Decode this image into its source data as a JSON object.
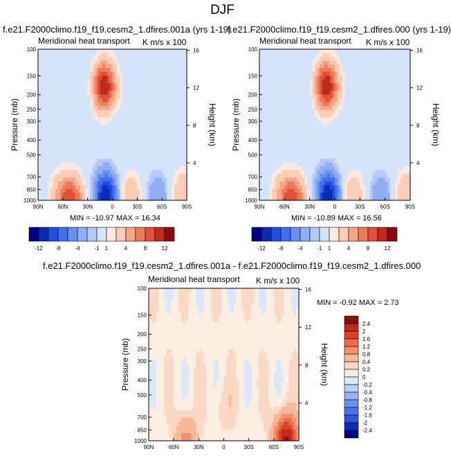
{
  "page_title": "DJF",
  "panels": [
    {
      "case": "f.e21.F2000climo.f19_f19.cesm2_1.dfires.001a (yrs 1-19)",
      "left_title": "Meridional heat transport",
      "right_title": "K m/s x 100",
      "stats": "MIN = -10.97   MAX =  16.34"
    },
    {
      "case": "f.e21.F2000climo.f19_f19.cesm2_1.dfires.000 (yrs 1-19)",
      "left_title": "Meridional heat transport",
      "right_title": "K m/s x 100",
      "stats": "MIN = -10.89   MAX =  16.56"
    },
    {
      "case": "f.e21.F2000climo.f19_f19.cesm2_1.dfires.001a - f.e21.F2000climo.f19_f19.cesm2_1.dfires.000",
      "left_title": "Meridional heat transport",
      "right_title": "K m/s x 100",
      "stats": "MIN =  -0.92   MAX =   2.73"
    }
  ],
  "chart_data": [
    {
      "type": "heatmap",
      "xlabel": "",
      "ylabel": "Pressure (mb)",
      "ylabel_right": "Height (km)",
      "x_ticks": [
        "90N",
        "60N",
        "30N",
        "0",
        "30S",
        "60S",
        "90S"
      ],
      "y_ticks": [
        "100",
        "150",
        "200",
        "250",
        "300",
        "400",
        "500",
        "700",
        "850",
        "1000"
      ],
      "y_right_ticks": [
        "16",
        "12",
        "8",
        "4"
      ],
      "colorbar_labels": [
        "-12",
        "-8",
        "-4",
        "-1",
        "1",
        "4",
        "8",
        "12"
      ],
      "colors": [
        "#000080",
        "#0a2bb5",
        "#1f4fe0",
        "#3f6ff0",
        "#6890f3",
        "#90aef5",
        "#b4c9f8",
        "#d6e4fb",
        "#fdeade",
        "#fbcdb4",
        "#f6a685",
        "#ee7b58",
        "#e0503a",
        "#c02a1c",
        "#8b0a0a"
      ],
      "features": [
        {
          "lat": 62,
          "p": 940,
          "value": 4
        },
        {
          "lat": 48,
          "p": 1000,
          "value": 8
        },
        {
          "lat": 8,
          "p": 930,
          "value": -12
        },
        {
          "lat": -22,
          "p": 950,
          "value": 4
        },
        {
          "lat": -55,
          "p": 960,
          "value": -4
        },
        {
          "lat": -85,
          "p": 920,
          "value": 4
        },
        {
          "lat": 10,
          "p": 175,
          "value": 12
        },
        {
          "lat": 30,
          "p": 175,
          "value": -1
        },
        {
          "lat": -30,
          "p": 200,
          "value": 1
        }
      ]
    },
    {
      "type": "heatmap",
      "xlabel": "",
      "ylabel": "Pressure (mb)",
      "ylabel_right": "Height (km)",
      "x_ticks": [
        "90N",
        "60N",
        "30N",
        "0",
        "30S",
        "60S",
        "90S"
      ],
      "y_ticks": [
        "100",
        "150",
        "200",
        "250",
        "300",
        "400",
        "500",
        "700",
        "850",
        "1000"
      ],
      "y_right_ticks": [
        "16",
        "12",
        "8",
        "4"
      ],
      "colorbar_labels": [
        "-12",
        "-8",
        "-4",
        "-1",
        "1",
        "4",
        "8",
        "12"
      ],
      "colors": [
        "#000080",
        "#0a2bb5",
        "#1f4fe0",
        "#3f6ff0",
        "#6890f3",
        "#90aef5",
        "#b4c9f8",
        "#d6e4fb",
        "#fdeade",
        "#fbcdb4",
        "#f6a685",
        "#ee7b58",
        "#e0503a",
        "#c02a1c",
        "#8b0a0a"
      ],
      "features": [
        {
          "lat": 62,
          "p": 940,
          "value": 4
        },
        {
          "lat": 48,
          "p": 1000,
          "value": 8
        },
        {
          "lat": 8,
          "p": 930,
          "value": -12
        },
        {
          "lat": -22,
          "p": 950,
          "value": 4
        },
        {
          "lat": -55,
          "p": 960,
          "value": -4
        },
        {
          "lat": -85,
          "p": 920,
          "value": 4
        },
        {
          "lat": 10,
          "p": 175,
          "value": 12
        },
        {
          "lat": 30,
          "p": 175,
          "value": -1
        },
        {
          "lat": -30,
          "p": 200,
          "value": 1
        }
      ]
    },
    {
      "type": "heatmap",
      "xlabel": "",
      "ylabel": "Pressure (mb)",
      "ylabel_right": "Height (km)",
      "x_ticks": [
        "90N",
        "60N",
        "30N",
        "0",
        "30S",
        "60S",
        "90S"
      ],
      "y_ticks": [
        "100",
        "150",
        "200",
        "250",
        "300",
        "400",
        "500",
        "700",
        "850",
        "1000"
      ],
      "y_right_ticks": [
        "16",
        "12",
        "8",
        "4"
      ],
      "colorbar_labels": [
        "2.4",
        "2",
        "1.6",
        "1.2",
        "0.8",
        "0.4",
        "0.2",
        "0",
        "-0.2",
        "-0.4",
        "-0.8",
        "-1.2",
        "-1.6",
        "-2",
        "-2.4"
      ],
      "colors": [
        "#8b0a0a",
        "#c02a1c",
        "#e0402a",
        "#ee6a4a",
        "#f39070",
        "#f8b89a",
        "#fbd8c4",
        "#fdeee2",
        "#dbe8fb",
        "#b8cff8",
        "#92b2f5",
        "#6b92f2",
        "#4a73ea",
        "#2c55d8",
        "#0a2bb5",
        "#000080"
      ],
      "features": [
        {
          "lat": 0,
          "p": 600,
          "value": 0.2
        },
        {
          "lat": -75,
          "p": 990,
          "value": 2.4
        },
        {
          "lat": 45,
          "p": 1000,
          "value": 0.8
        }
      ]
    }
  ]
}
